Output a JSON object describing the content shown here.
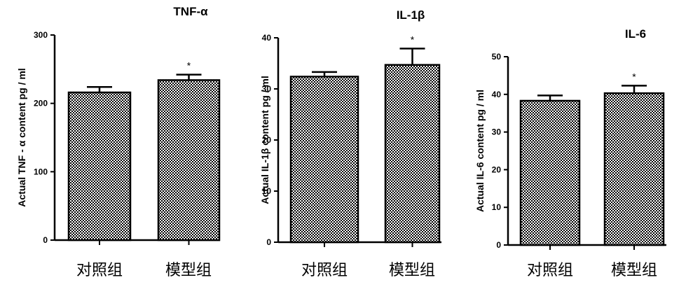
{
  "chart_data": [
    {
      "type": "bar",
      "title": "TNF-α",
      "ylabel": "Actual TNF - α content pg / ml",
      "ylim": [
        0,
        300
      ],
      "yticks": [
        0,
        100,
        200,
        300
      ],
      "categories": [
        "对照组",
        "模型组"
      ],
      "values": [
        216,
        234
      ],
      "errors": [
        8,
        8
      ],
      "annotations": [
        "",
        "*"
      ]
    },
    {
      "type": "bar",
      "title": "IL-1β",
      "ylabel": "Actual IL-1β content pg / ml",
      "ylim": [
        0,
        40
      ],
      "yticks": [
        0,
        10,
        20,
        30,
        40
      ],
      "categories": [
        "对照组",
        "模型组"
      ],
      "values": [
        32.4,
        34.7
      ],
      "errors": [
        0.9,
        3.2
      ],
      "annotations": [
        "",
        "*"
      ]
    },
    {
      "type": "bar",
      "title": "IL-6",
      "ylabel": "Actual IL-6 content pg / ml",
      "ylim": [
        0,
        50
      ],
      "yticks": [
        0,
        10,
        20,
        30,
        40,
        50
      ],
      "categories": [
        "对照组",
        "模型组"
      ],
      "values": [
        38.3,
        40.3
      ],
      "errors": [
        1.4,
        2.0
      ],
      "annotations": [
        "",
        "*"
      ]
    }
  ],
  "colors": {
    "bar_pattern_dark": "#000000",
    "bar_pattern_light": "#ffffff",
    "axis": "#000000"
  }
}
